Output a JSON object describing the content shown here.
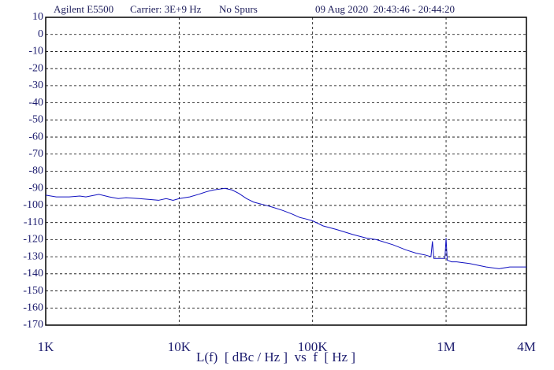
{
  "header": {
    "instrument": "Agilent E5500",
    "carrier": "Carrier: 3E+9 Hz",
    "spurs": "No Spurs",
    "date": "09 Aug 2020  20:43:46 - 20:44:20"
  },
  "chart_data": {
    "type": "line",
    "xlabel": "L(f)  [ dBc / Hz ]  vs  f  [ Hz ]",
    "log_x": true,
    "grid": true,
    "color": "#1010c0",
    "xlim": [
      1000,
      4000000
    ],
    "xticks": [
      {
        "value": 1000,
        "label": "1K"
      },
      {
        "value": 10000,
        "label": "10K"
      },
      {
        "value": 100000,
        "label": "100K"
      },
      {
        "value": 1000000,
        "label": "1M"
      },
      {
        "value": 4000000,
        "label": "4M"
      }
    ],
    "ylim": [
      -170,
      10
    ],
    "yticks": [
      10,
      0,
      -10,
      -20,
      -30,
      -40,
      -50,
      -60,
      -70,
      -80,
      -90,
      -100,
      -110,
      -120,
      -130,
      -140,
      -150,
      -160,
      -170
    ],
    "x": [
      1000,
      1200,
      1500,
      1800,
      2000,
      2500,
      3000,
      3500,
      4000,
      5000,
      6000,
      7000,
      8000,
      9000,
      10000,
      12000,
      14000,
      16000,
      18000,
      20000,
      22000,
      25000,
      28000,
      32000,
      36000,
      40000,
      45000,
      50000,
      60000,
      70000,
      80000,
      90000,
      100000,
      120000,
      150000,
      200000,
      250000,
      300000,
      400000,
      500000,
      600000,
      700000,
      770000,
      790000,
      810000,
      900000,
      980000,
      1000000,
      1020000,
      1100000,
      1200000,
      1500000,
      2000000,
      2500000,
      3000000,
      3500000,
      4000000
    ],
    "values": [
      -94,
      -95,
      -95,
      -94.5,
      -95,
      -93.5,
      -95,
      -96,
      -95.5,
      -96,
      -96.5,
      -97,
      -96,
      -97,
      -96,
      -95,
      -93.5,
      -92,
      -91,
      -90.5,
      -90,
      -91,
      -93,
      -96,
      -98,
      -99,
      -100,
      -101,
      -103,
      -105,
      -107,
      -108,
      -109,
      -112,
      -114,
      -117,
      -119,
      -120,
      -123,
      -126,
      -128,
      -129,
      -130,
      -121,
      -131,
      -131,
      -131,
      -119,
      -132,
      -133,
      -133,
      -134,
      -136,
      -137,
      -136,
      -136,
      -136
    ]
  }
}
